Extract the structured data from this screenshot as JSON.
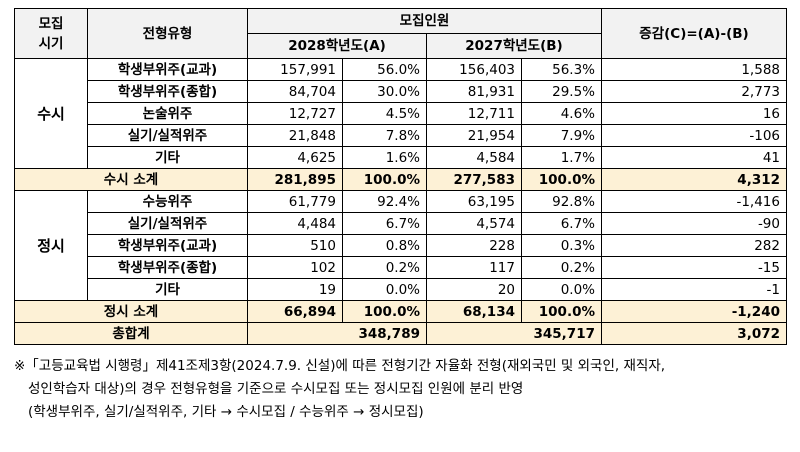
{
  "header": {
    "period": "모집\n시기",
    "type": "전형유형",
    "recruit": "모집인원",
    "y2028": "2028학년도(A)",
    "y2027": "2027학년도(B)",
    "change": "증감(C)=(A)-(B)"
  },
  "susi": {
    "label": "수시",
    "rows": [
      {
        "type": "학생부위주(교과)",
        "a": "157,991",
        "ap": "56.0%",
        "b": "156,403",
        "bp": "56.3%",
        "c": "1,588"
      },
      {
        "type": "학생부위주(종합)",
        "a": "84,704",
        "ap": "30.0%",
        "b": "81,931",
        "bp": "29.5%",
        "c": "2,773"
      },
      {
        "type": "논술위주",
        "a": "12,727",
        "ap": "4.5%",
        "b": "12,711",
        "bp": "4.6%",
        "c": "16"
      },
      {
        "type": "실기/실적위주",
        "a": "21,848",
        "ap": "7.8%",
        "b": "21,954",
        "bp": "7.9%",
        "c": "-106"
      },
      {
        "type": "기타",
        "a": "4,625",
        "ap": "1.6%",
        "b": "4,584",
        "bp": "1.7%",
        "c": "41"
      }
    ],
    "subtotal": {
      "label": "수시 소계",
      "a": "281,895",
      "ap": "100.0%",
      "b": "277,583",
      "bp": "100.0%",
      "c": "4,312"
    }
  },
  "jeongsi": {
    "label": "정시",
    "rows": [
      {
        "type": "수능위주",
        "a": "61,779",
        "ap": "92.4%",
        "b": "63,195",
        "bp": "92.8%",
        "c": "-1,416"
      },
      {
        "type": "실기/실적위주",
        "a": "4,484",
        "ap": "6.7%",
        "b": "4,574",
        "bp": "6.7%",
        "c": "-90"
      },
      {
        "type": "학생부위주(교과)",
        "a": "510",
        "ap": "0.8%",
        "b": "228",
        "bp": "0.3%",
        "c": "282"
      },
      {
        "type": "학생부위주(종합)",
        "a": "102",
        "ap": "0.2%",
        "b": "117",
        "bp": "0.2%",
        "c": "-15"
      },
      {
        "type": "기타",
        "a": "19",
        "ap": "0.0%",
        "b": "20",
        "bp": "0.0%",
        "c": "-1"
      }
    ],
    "subtotal": {
      "label": "정시 소계",
      "a": "66,894",
      "ap": "100.0%",
      "b": "68,134",
      "bp": "100.0%",
      "c": "-1,240"
    }
  },
  "total": {
    "label": "총합계",
    "a": "348,789",
    "b": "345,717",
    "c": "3,072"
  },
  "note": {
    "line1": "※「고등교육법 시행령」제41조제3항(2024.7.9. 신설)에 따른 전형기간 자율화 전형(재외국민 및 외국인, 재직자,",
    "line2": "성인학습자 대상)의 경우 전형유형을 기준으로 수시모집 또는 정시모집 인원에 분리 반영",
    "line3": "(학생부위주, 실기/실적위주, 기타 → 수시모집 / 수능위주 → 정시모집)"
  }
}
